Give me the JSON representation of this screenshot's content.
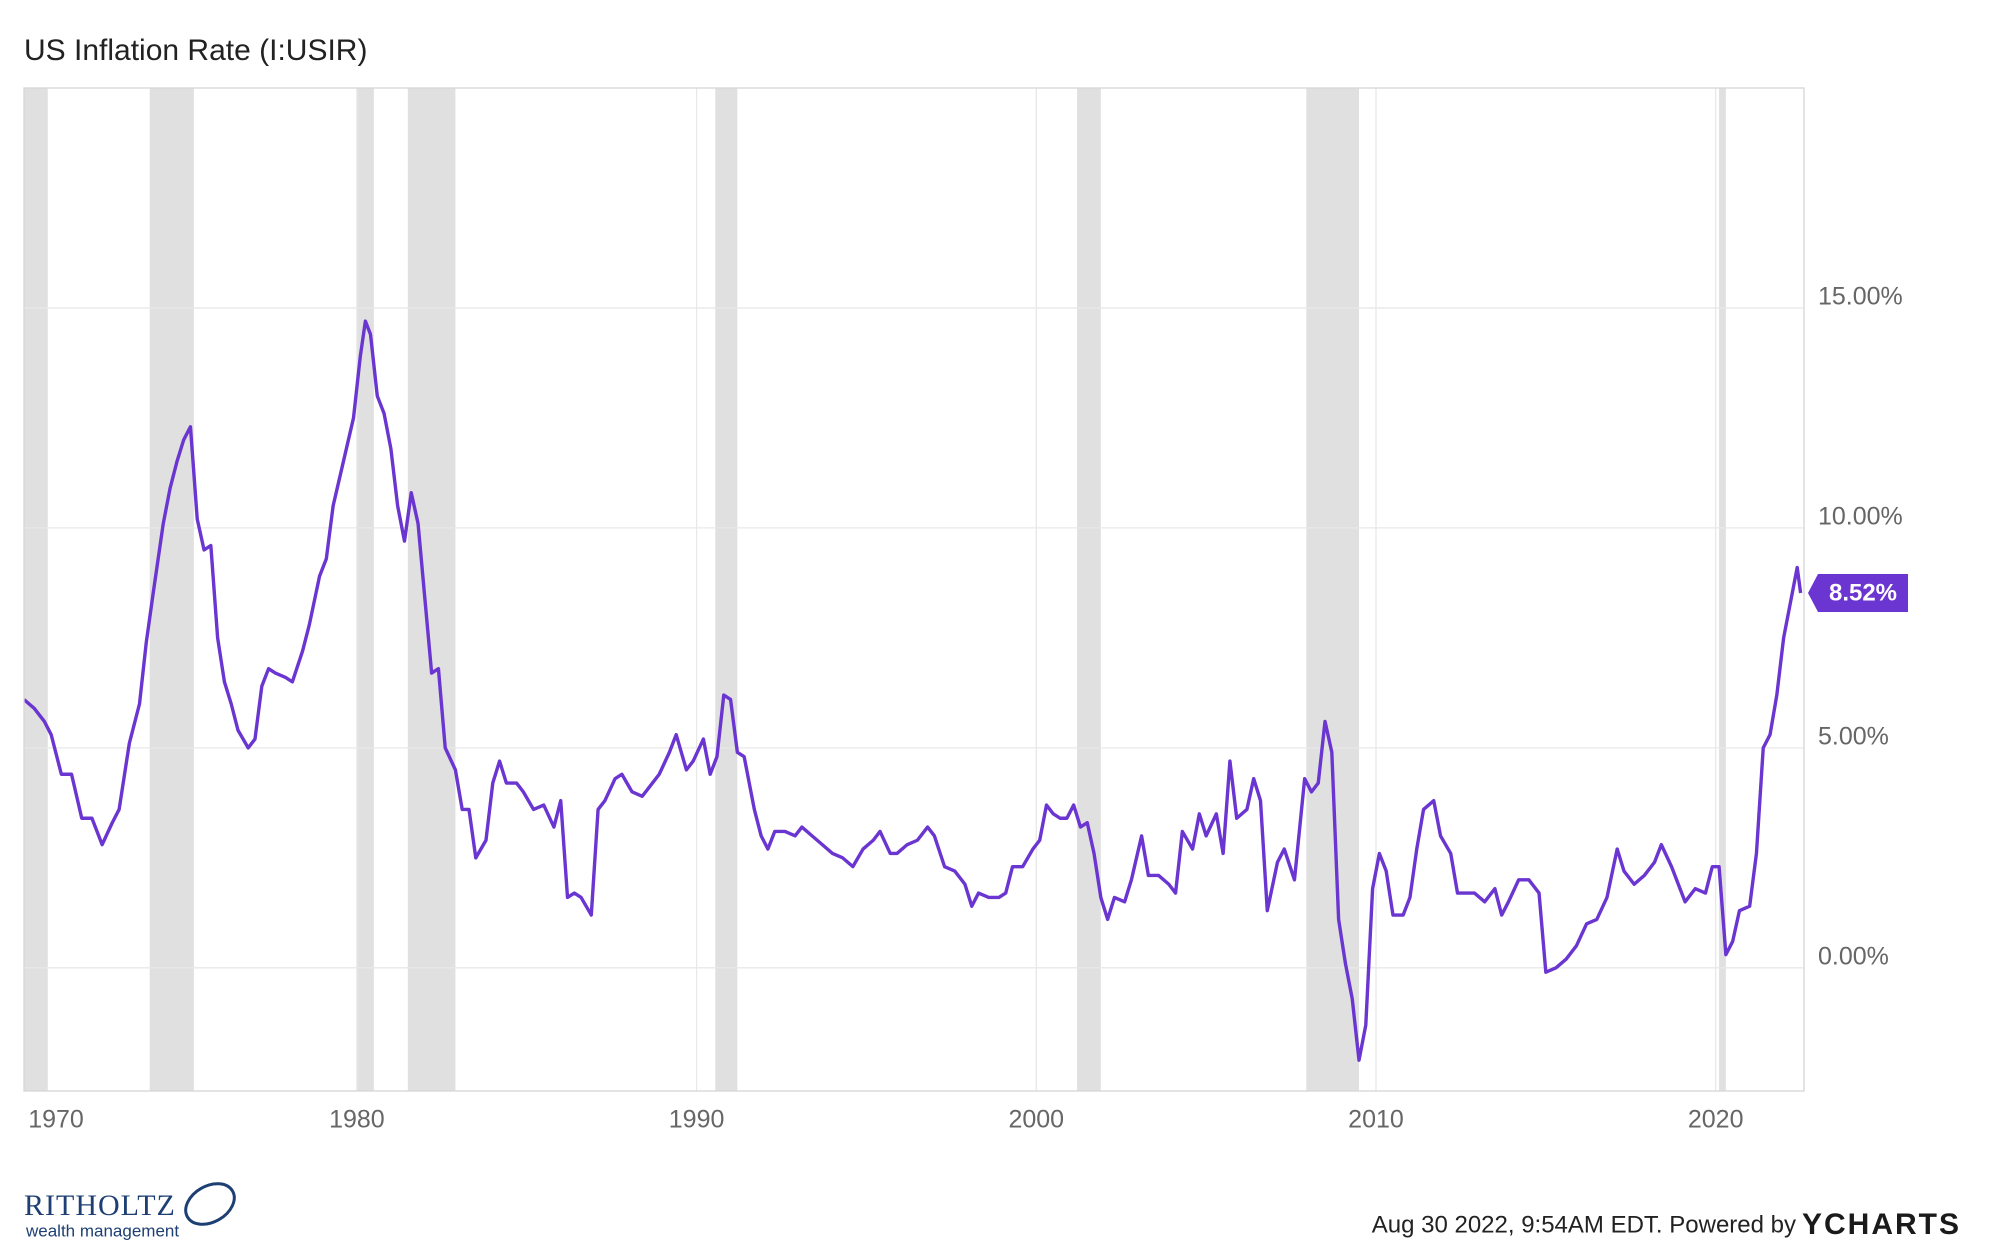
{
  "chart_data": {
    "type": "line",
    "title": "US Inflation Rate (I:USIR)",
    "color": "#6a35d0",
    "grid": true,
    "xlim": [
      1970.2,
      2022.6
    ],
    "xticks": [
      1970,
      1980,
      1990,
      2000,
      2010,
      2020
    ],
    "ylim": [
      -2.8,
      20
    ],
    "yticks": [
      {
        "value": 0,
        "label": "0.00%"
      },
      {
        "value": 5,
        "label": "5.00%"
      },
      {
        "value": 10,
        "label": "10.00%"
      },
      {
        "value": 15,
        "label": "15.00%"
      }
    ],
    "recessions": [
      [
        1969.95,
        1970.9
      ],
      [
        1973.9,
        1975.2
      ],
      [
        1980.0,
        1980.5
      ],
      [
        1981.5,
        1982.9
      ],
      [
        1990.55,
        1991.2
      ],
      [
        2001.2,
        2001.9
      ],
      [
        2007.95,
        2009.5
      ],
      [
        2020.1,
        2020.3
      ]
    ],
    "x": [
      1970.2,
      1970.5,
      1970.8,
      1971.0,
      1971.3,
      1971.6,
      1971.9,
      1972.2,
      1972.5,
      1972.8,
      1973.0,
      1973.3,
      1973.6,
      1973.8,
      1974.0,
      1974.3,
      1974.5,
      1974.7,
      1974.9,
      1975.1,
      1975.3,
      1975.5,
      1975.7,
      1975.9,
      1976.1,
      1976.3,
      1976.5,
      1976.8,
      1977.0,
      1977.2,
      1977.4,
      1977.6,
      1977.9,
      1978.1,
      1978.4,
      1978.6,
      1978.9,
      1979.1,
      1979.3,
      1979.6,
      1979.9,
      1980.1,
      1980.25,
      1980.4,
      1980.6,
      1980.8,
      1981.0,
      1981.2,
      1981.4,
      1981.6,
      1981.8,
      1982.0,
      1982.2,
      1982.4,
      1982.6,
      1982.9,
      1983.1,
      1983.3,
      1983.5,
      1983.8,
      1984.0,
      1984.2,
      1984.4,
      1984.7,
      1984.9,
      1985.2,
      1985.5,
      1985.8,
      1986.0,
      1986.2,
      1986.4,
      1986.6,
      1986.9,
      1987.1,
      1987.3,
      1987.6,
      1987.8,
      1988.1,
      1988.4,
      1988.7,
      1988.9,
      1989.2,
      1989.4,
      1989.7,
      1989.9,
      1990.2,
      1990.4,
      1990.6,
      1990.8,
      1991.0,
      1991.2,
      1991.4,
      1991.7,
      1991.9,
      1992.1,
      1992.3,
      1992.6,
      1992.9,
      1993.1,
      1993.4,
      1993.7,
      1994.0,
      1994.3,
      1994.6,
      1994.9,
      1995.2,
      1995.4,
      1995.7,
      1995.9,
      1996.2,
      1996.5,
      1996.8,
      1997.0,
      1997.3,
      1997.6,
      1997.9,
      1998.1,
      1998.3,
      1998.6,
      1998.9,
      1999.1,
      1999.3,
      1999.6,
      1999.9,
      2000.1,
      2000.3,
      2000.5,
      2000.7,
      2000.9,
      2001.1,
      2001.3,
      2001.5,
      2001.7,
      2001.9,
      2002.1,
      2002.3,
      2002.6,
      2002.8,
      2003.1,
      2003.3,
      2003.6,
      2003.9,
      2004.1,
      2004.3,
      2004.6,
      2004.8,
      2005.0,
      2005.3,
      2005.5,
      2005.7,
      2005.9,
      2006.2,
      2006.4,
      2006.6,
      2006.8,
      2007.1,
      2007.3,
      2007.6,
      2007.9,
      2008.1,
      2008.3,
      2008.5,
      2008.7,
      2008.9,
      2009.1,
      2009.3,
      2009.5,
      2009.7,
      2009.9,
      2010.1,
      2010.3,
      2010.5,
      2010.8,
      2011.0,
      2011.2,
      2011.4,
      2011.7,
      2011.9,
      2012.2,
      2012.4,
      2012.7,
      2012.9,
      2013.2,
      2013.5,
      2013.7,
      2013.9,
      2014.2,
      2014.5,
      2014.8,
      2015.0,
      2015.3,
      2015.6,
      2015.9,
      2016.2,
      2016.5,
      2016.8,
      2017.1,
      2017.3,
      2017.6,
      2017.9,
      2018.2,
      2018.4,
      2018.7,
      2018.9,
      2019.1,
      2019.4,
      2019.7,
      2019.9,
      2020.1,
      2020.3,
      2020.5,
      2020.7,
      2021.0,
      2021.2,
      2021.4,
      2021.6,
      2021.8,
      2022.0,
      2022.2,
      2022.4,
      2022.5
    ],
    "values": [
      6.1,
      5.9,
      5.6,
      5.3,
      4.4,
      4.4,
      3.4,
      3.4,
      2.8,
      3.3,
      3.6,
      5.1,
      6.0,
      7.4,
      8.5,
      10.1,
      10.9,
      11.5,
      12.0,
      12.3,
      10.2,
      9.5,
      9.6,
      7.5,
      6.5,
      6.0,
      5.4,
      5.0,
      5.2,
      6.4,
      6.8,
      6.7,
      6.6,
      6.5,
      7.2,
      7.8,
      8.9,
      9.3,
      10.5,
      11.5,
      12.5,
      13.9,
      14.7,
      14.4,
      13.0,
      12.6,
      11.8,
      10.5,
      9.7,
      10.8,
      10.1,
      8.4,
      6.7,
      6.8,
      5.0,
      4.5,
      3.6,
      3.6,
      2.5,
      2.9,
      4.2,
      4.7,
      4.2,
      4.2,
      4.0,
      3.6,
      3.7,
      3.2,
      3.8,
      1.6,
      1.7,
      1.6,
      1.2,
      3.6,
      3.8,
      4.3,
      4.4,
      4.0,
      3.9,
      4.2,
      4.4,
      4.9,
      5.3,
      4.5,
      4.7,
      5.2,
      4.4,
      4.8,
      6.2,
      6.1,
      4.9,
      4.8,
      3.6,
      3.0,
      2.7,
      3.1,
      3.1,
      3.0,
      3.2,
      3.0,
      2.8,
      2.6,
      2.5,
      2.3,
      2.7,
      2.9,
      3.1,
      2.6,
      2.6,
      2.8,
      2.9,
      3.2,
      3.0,
      2.3,
      2.2,
      1.9,
      1.4,
      1.7,
      1.6,
      1.6,
      1.7,
      2.3,
      2.3,
      2.7,
      2.9,
      3.7,
      3.5,
      3.4,
      3.4,
      3.7,
      3.2,
      3.3,
      2.6,
      1.6,
      1.1,
      1.6,
      1.5,
      2.0,
      3.0,
      2.1,
      2.1,
      1.9,
      1.7,
      3.1,
      2.7,
      3.5,
      3.0,
      3.5,
      2.6,
      4.7,
      3.4,
      3.6,
      4.3,
      3.8,
      1.3,
      2.4,
      2.7,
      2.0,
      4.3,
      4.0,
      4.2,
      5.6,
      4.9,
      1.1,
      0.1,
      -0.7,
      -2.1,
      -1.3,
      1.8,
      2.6,
      2.2,
      1.2,
      1.2,
      1.6,
      2.7,
      3.6,
      3.8,
      3.0,
      2.6,
      1.7,
      1.7,
      1.7,
      1.5,
      1.8,
      1.2,
      1.5,
      2.0,
      2.0,
      1.7,
      -0.1,
      0.0,
      0.2,
      0.5,
      1.0,
      1.1,
      1.6,
      2.7,
      2.2,
      1.9,
      2.1,
      2.4,
      2.8,
      2.3,
      1.9,
      1.5,
      1.8,
      1.7,
      2.3,
      2.3,
      0.3,
      0.6,
      1.3,
      1.4,
      2.6,
      5.0,
      5.3,
      6.2,
      7.5,
      8.3,
      9.1,
      8.52
    ],
    "annotations": [
      {
        "x": 2022.5,
        "y": 8.52,
        "label": "8.52%"
      }
    ]
  },
  "footer": {
    "brand": "RITHOLTZ",
    "brand_sub": "wealth management",
    "timestamp": "Aug 30 2022, 9:54AM EDT. Powered by",
    "provider": "YCHARTS"
  }
}
